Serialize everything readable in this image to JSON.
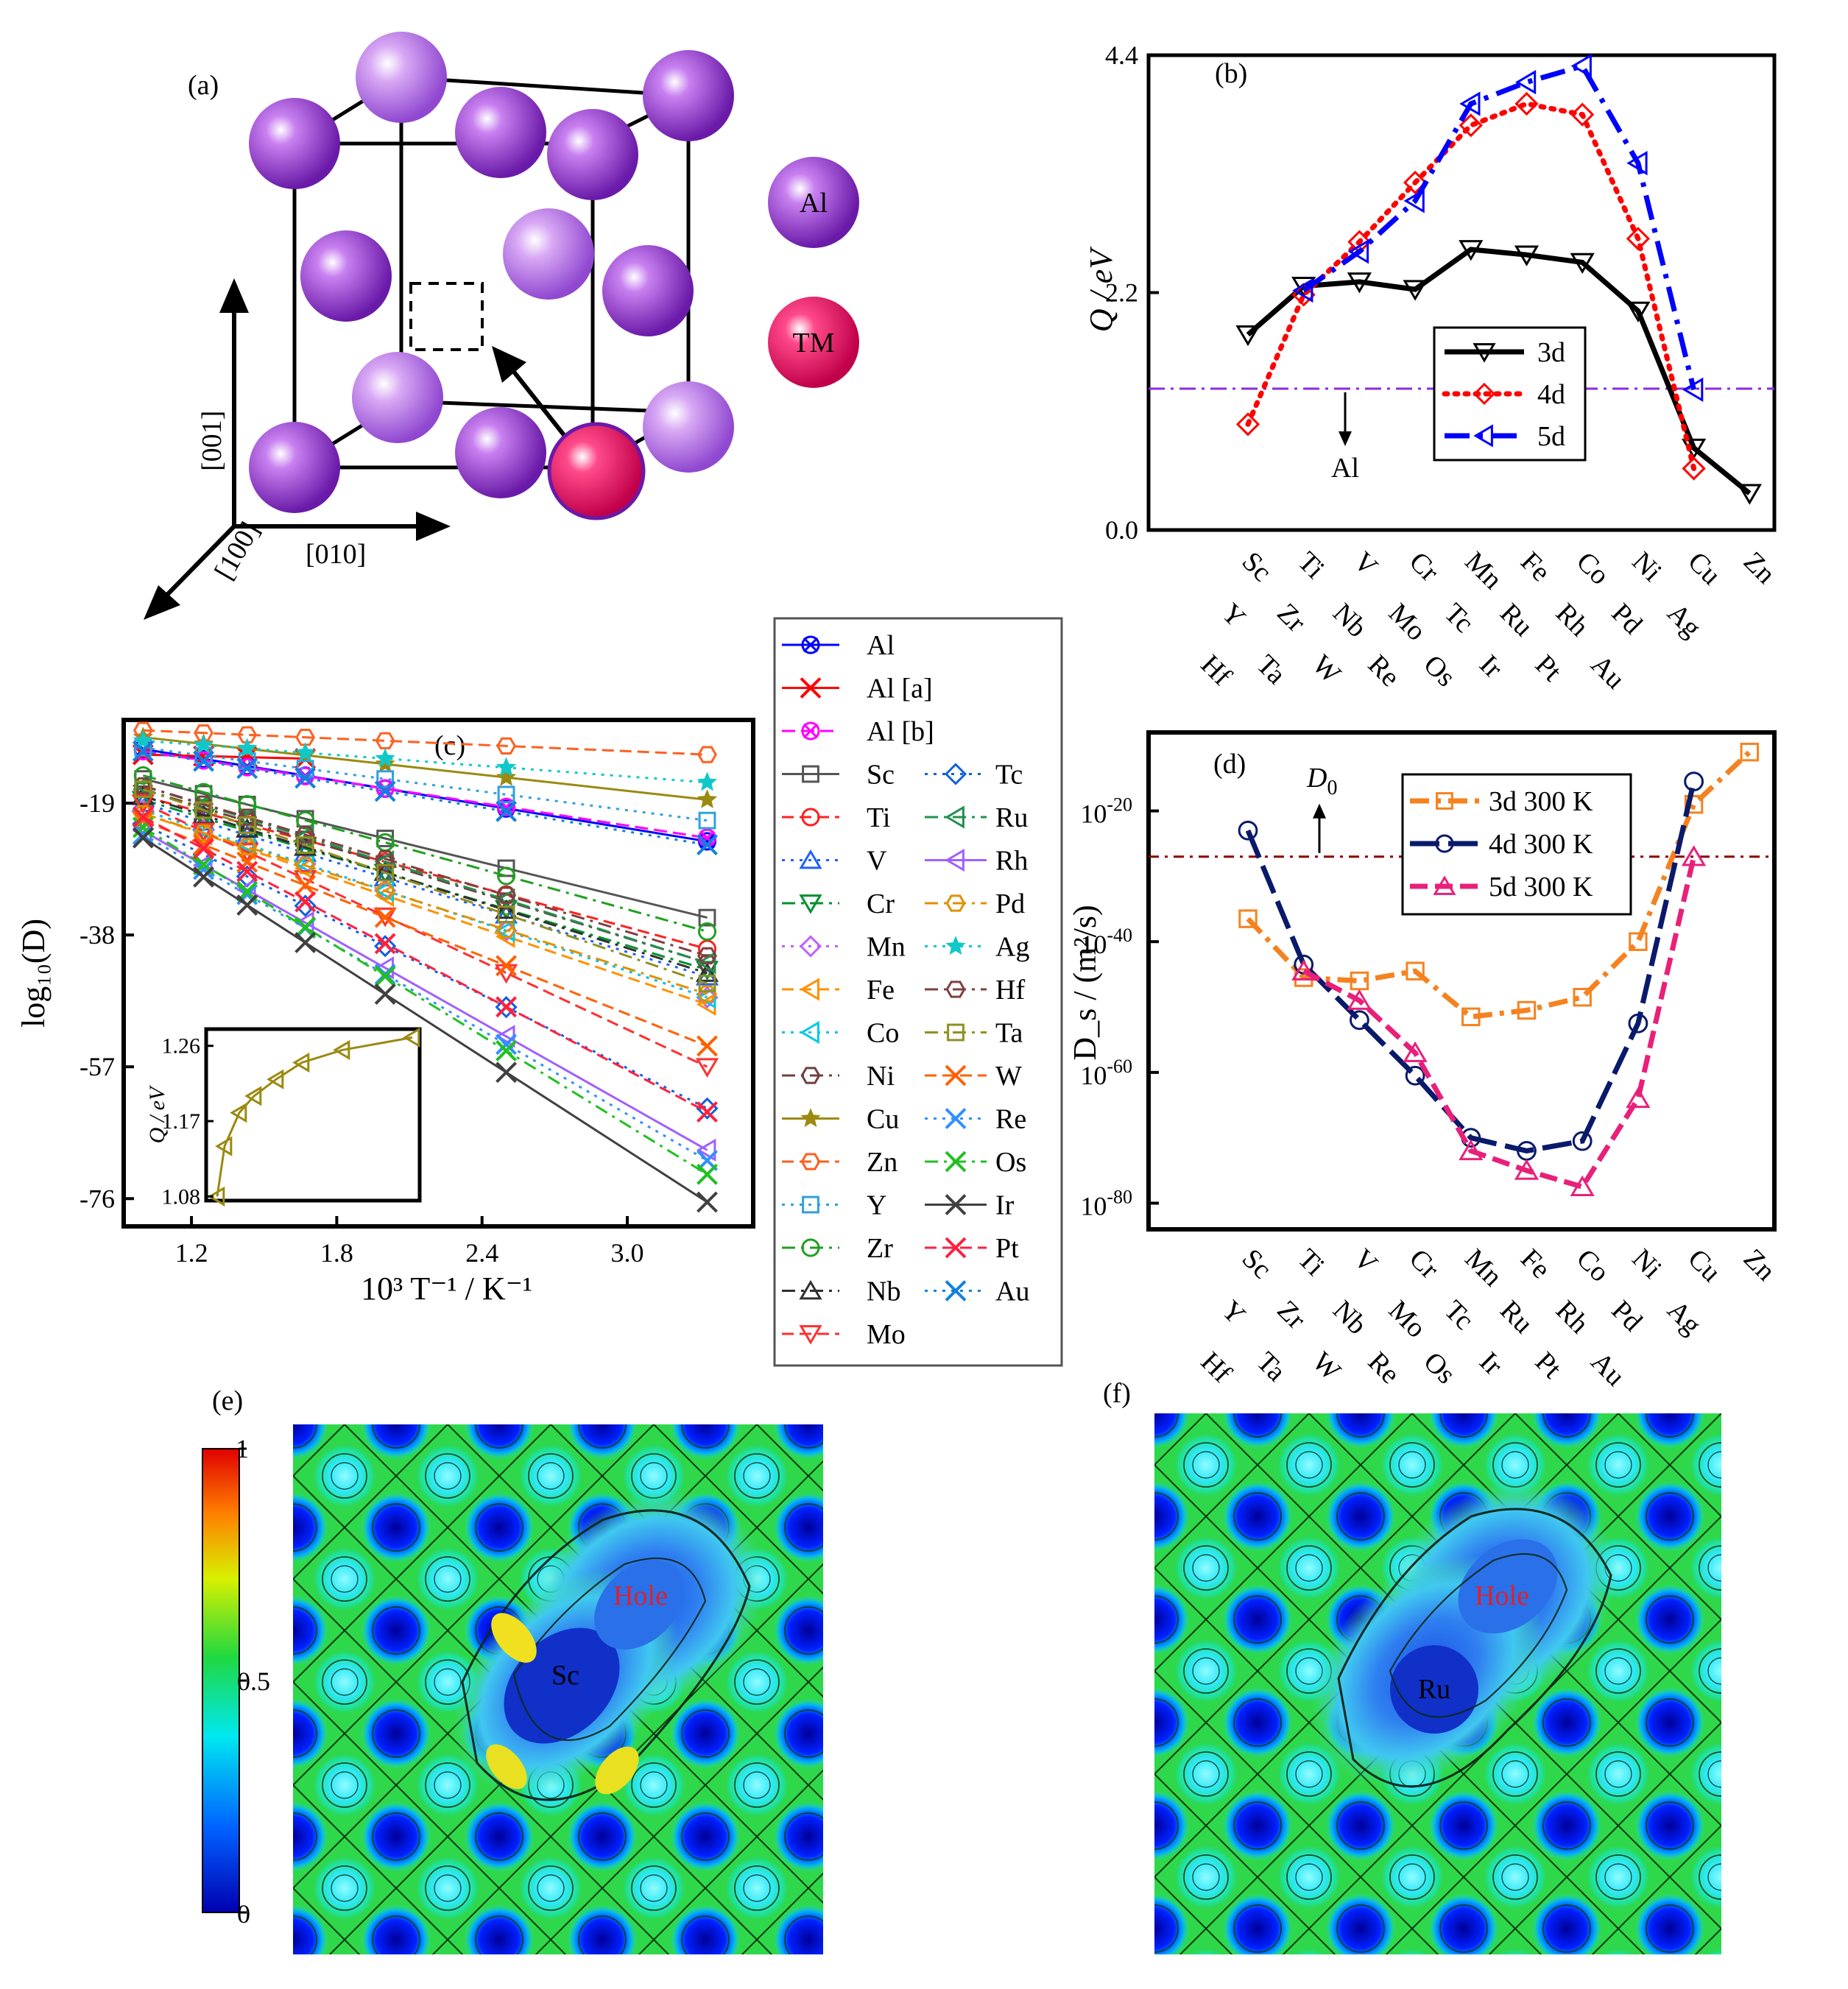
{
  "panels": {
    "a": {
      "label": "(a)",
      "legend": {
        "al": "Al",
        "tm": "TM"
      },
      "axes": [
        "[001]",
        "[010]",
        "[100]"
      ],
      "colors": {
        "al": "#8a2fc0",
        "al_light": "#b070e0",
        "tm": "#e5105a"
      }
    },
    "b": {
      "label": "(b)"
    },
    "c": {
      "label": "(c)"
    },
    "d": {
      "label": "(d)"
    },
    "e": {
      "label": "(e)",
      "atom": "Sc",
      "hole": "Hole",
      "colorbar_ticks": [
        "1",
        "0.5",
        "0"
      ]
    },
    "f": {
      "label": "(f)",
      "atom": "Ru",
      "hole": "Hole"
    }
  },
  "chart_data": [
    {
      "panel": "b",
      "type": "line",
      "ylabel": "Q / eV",
      "ylim": [
        0.0,
        4.4
      ],
      "yticks": [
        "0.0",
        "2.2",
        "4.4"
      ],
      "categories_3d": [
        "Sc",
        "Ti",
        "V",
        "Cr",
        "Mn",
        "Fe",
        "Co",
        "Ni",
        "Cu",
        "Zn"
      ],
      "categories_4d": [
        "Y",
        "Zr",
        "Nb",
        "Mo",
        "Tc",
        "Ru",
        "Rh",
        "Pd",
        "Ag"
      ],
      "categories_5d": [
        "Hf",
        "Ta",
        "W",
        "Re",
        "Os",
        "Ir",
        "Pt",
        "Au"
      ],
      "series": [
        {
          "name": "3d",
          "color": "#000000",
          "values": [
            1.81,
            2.26,
            2.3,
            2.23,
            2.6,
            2.55,
            2.48,
            2.03,
            0.76,
            0.34
          ]
        },
        {
          "name": "4d",
          "color": "#ff0000",
          "values": [
            0.98,
            2.18,
            2.67,
            3.22,
            3.75,
            3.95,
            3.85,
            2.7,
            0.57,
            null
          ]
        },
        {
          "name": "5d",
          "color": "#0000ff",
          "values": [
            null,
            2.22,
            2.58,
            3.05,
            3.95,
            4.15,
            4.3,
            3.4,
            1.3,
            null
          ]
        }
      ],
      "reference": {
        "name": "Al",
        "value": 1.31,
        "color": "#8a2be2"
      }
    },
    {
      "panel": "c",
      "type": "line",
      "xlabel": "10³ T⁻¹ / K⁻¹",
      "ylabel": "log₁₀(D)",
      "xlim": [
        0.92,
        3.52
      ],
      "ylim": [
        -80,
        -7
      ],
      "xticks": [
        "1.2",
        "1.8",
        "2.4",
        "3.0"
      ],
      "yticks": [
        "-19",
        "-38",
        "-57",
        "-76"
      ],
      "x": [
        1.0,
        1.25,
        1.43,
        1.67,
        2.0,
        2.5,
        3.33
      ],
      "legend": [
        {
          "name": "Al",
          "color": "#0000ff",
          "v1": -11.2,
          "v2": -24.5
        },
        {
          "name": "Al [a]",
          "color": "#ff0000",
          "v1": -12.0,
          "v2": -14.0
        },
        {
          "name": "Al [b]",
          "color": "#ff00ff",
          "v1": -11.5,
          "v2": -24.0
        },
        {
          "name": "Sc",
          "color": "#555555",
          "v1": -15.5,
          "v2": -35.5
        },
        {
          "name": "Ti",
          "color": "#ff2020",
          "v1": -18.0,
          "v2": -40.0
        },
        {
          "name": "V",
          "color": "#2060ff",
          "v1": -19.0,
          "v2": -44.0
        },
        {
          "name": "Cr",
          "color": "#009030",
          "v1": -18.5,
          "v2": -43.0
        },
        {
          "name": "Mn",
          "color": "#c060ff",
          "v1": -20.0,
          "v2": -47.0
        },
        {
          "name": "Fe",
          "color": "#ff9000",
          "v1": -20.5,
          "v2": -48.0
        },
        {
          "name": "Co",
          "color": "#00c8e8",
          "v1": -20.0,
          "v2": -47.0
        },
        {
          "name": "Ni",
          "color": "#704040",
          "v1": -17.0,
          "v2": -42.0
        },
        {
          "name": "Cu",
          "color": "#9a8a10",
          "v1": -9.5,
          "v2": -18.5
        },
        {
          "name": "Zn",
          "color": "#ff6020",
          "v1": -8.5,
          "v2": -12.0
        },
        {
          "name": "Y",
          "color": "#30a0e0",
          "v1": -11.0,
          "v2": -21.5
        },
        {
          "name": "Zr",
          "color": "#20a020",
          "v1": -15.0,
          "v2": -37.5
        },
        {
          "name": "Nb",
          "color": "#303030",
          "v1": -18.0,
          "v2": -43.5
        },
        {
          "name": "Mo",
          "color": "#ff3030",
          "v1": -19.0,
          "v2": -57.0
        },
        {
          "name": "Tc",
          "color": "#1060e0",
          "v1": -22.0,
          "v2": -63.0
        },
        {
          "name": "Ru",
          "color": "#209050",
          "v1": -16.5,
          "v2": -42.0
        },
        {
          "name": "Rh",
          "color": "#a060ff",
          "v1": -23.0,
          "v2": -69.0
        },
        {
          "name": "Pd",
          "color": "#e09000",
          "v1": -20.5,
          "v2": -46.5
        },
        {
          "name": "Ag",
          "color": "#10c8c8",
          "v1": -10.0,
          "v2": -16.0
        },
        {
          "name": "Hf",
          "color": "#804040",
          "v1": -16.5,
          "v2": -41.0
        },
        {
          "name": "Ta",
          "color": "#909020",
          "v1": -17.0,
          "v2": -45.0
        },
        {
          "name": "W",
          "color": "#ff6000",
          "v1": -21.5,
          "v2": -54.0
        },
        {
          "name": "Re",
          "color": "#3090ff",
          "v1": -23.5,
          "v2": -70.5
        },
        {
          "name": "Os",
          "color": "#20c020",
          "v1": -22.5,
          "v2": -72.5
        },
        {
          "name": "Ir",
          "color": "#404040",
          "v1": -24.0,
          "v2": -76.5
        },
        {
          "name": "Pt",
          "color": "#ff2040",
          "v1": -21.0,
          "v2": -63.5
        },
        {
          "name": "Au",
          "color": "#1080e0",
          "v1": -11.5,
          "v2": -25.0
        }
      ],
      "inset": {
        "ylabel": "Q / eV",
        "yticks": [
          "1.26",
          "1.17",
          "1.08"
        ],
        "ylim": [
          1.075,
          1.28
        ],
        "color": "#9a8a10",
        "values": [
          1.08,
          1.14,
          1.18,
          1.2,
          1.22,
          1.24,
          1.255,
          1.27
        ]
      }
    },
    {
      "panel": "d",
      "type": "line",
      "ylabel": "D_s / (m²/s)",
      "ylim": [
        -84,
        -8
      ],
      "yticks": [
        {
          "base": "10",
          "exp": "-20",
          "v": -20
        },
        {
          "base": "10",
          "exp": "-40",
          "v": -40
        },
        {
          "base": "10",
          "exp": "-60",
          "v": -60
        },
        {
          "base": "10",
          "exp": "-80",
          "v": -80
        }
      ],
      "categories_3d": [
        "Sc",
        "Ti",
        "V",
        "Cr",
        "Mn",
        "Fe",
        "Co",
        "Ni",
        "Cu",
        "Zn"
      ],
      "categories_4d": [
        "Y",
        "Zr",
        "Nb",
        "Mo",
        "Tc",
        "Ru",
        "Rh",
        "Pd",
        "Ag"
      ],
      "categories_5d": [
        "Hf",
        "Ta",
        "W",
        "Re",
        "Os",
        "Ir",
        "Pt",
        "Au"
      ],
      "series": [
        {
          "name": "3d 300 K",
          "color": "#f5821f",
          "values": [
            -36.5,
            -45.5,
            -46.0,
            -44.5,
            -51.5,
            -50.5,
            -48.5,
            -40.0,
            -19.0,
            -11.0
          ]
        },
        {
          "name": "4d 300 K",
          "color": "#0a1a6b",
          "values": [
            -23.0,
            -43.5,
            -52.0,
            -60.5,
            -70.0,
            -72.0,
            -70.5,
            -52.5,
            -15.5,
            null
          ]
        },
        {
          "name": "5d 300 K",
          "color": "#e8207a",
          "values": [
            null,
            -44.5,
            -49.0,
            -57.0,
            -72.0,
            -75.0,
            -77.5,
            -64.0,
            -27.0,
            null
          ]
        }
      ],
      "reference": {
        "name": "D",
        "sub": "0",
        "value": -27.0,
        "color": "#8b0000"
      }
    }
  ]
}
